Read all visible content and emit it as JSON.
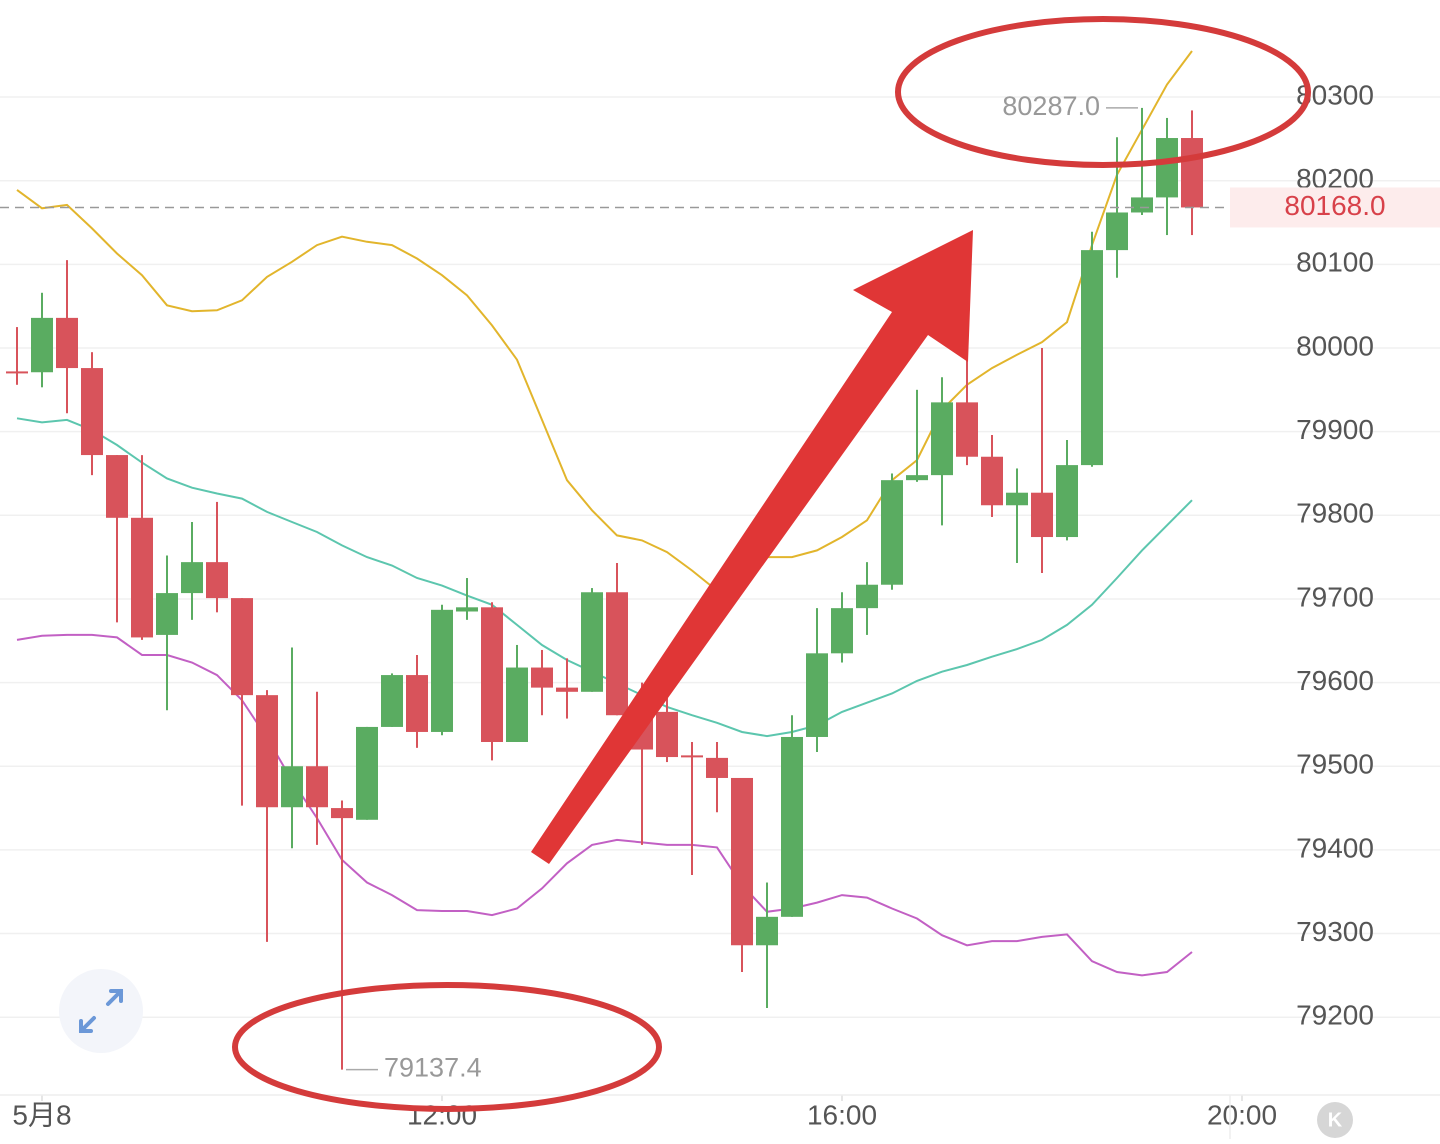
{
  "chart_data": {
    "type": "candlestick",
    "x": [
      7.75,
      8,
      8.25,
      8.5,
      8.75,
      9,
      9.25,
      9.5,
      9.75,
      10,
      10.25,
      10.5,
      10.75,
      11,
      11.25,
      11.5,
      11.75,
      12,
      12.25,
      12.5,
      12.75,
      13,
      13.25,
      13.5,
      13.75,
      14,
      14.25,
      14.5,
      14.75,
      15,
      15.25,
      15.5,
      15.75,
      16,
      16.25,
      16.5,
      16.75,
      17,
      17.25,
      17.5,
      17.75,
      18,
      18.25,
      18.5,
      18.75,
      19,
      19.25,
      19.5
    ],
    "open": [
      79972,
      79971,
      80036,
      79976,
      79872,
      79797,
      79657,
      79707,
      79744,
      79701,
      79585,
      79451,
      79500,
      79450,
      79436,
      79547,
      79609,
      79541,
      79685,
      79690,
      79529,
      79618,
      79594,
      79589,
      79708,
      79561,
      79565,
      79513,
      79510,
      79486,
      79286,
      79320,
      79535,
      79635,
      79689,
      79717,
      79842,
      79848,
      79935,
      79870,
      79812,
      79827,
      79774,
      79860,
      80117,
      80162,
      80180,
      80251
    ],
    "high": [
      80025,
      80066,
      80105,
      79995,
      79872,
      79872,
      79752,
      79792,
      79816,
      79701,
      79591,
      79642,
      79589,
      79459,
      79547,
      79611,
      79633,
      79693,
      79725,
      79696,
      79645,
      79639,
      79629,
      79713,
      79743,
      79600,
      79591,
      79529,
      79529,
      79486,
      79361,
      79561,
      79689,
      79708,
      79744,
      79850,
      79950,
      79965,
      80015,
      79896,
      79856,
      80000,
      79890,
      80139,
      80252,
      80287.0,
      80275,
      80284
    ],
    "low": [
      79956,
      79953,
      79922,
      79848,
      79672,
      79651,
      79567,
      79675,
      79684,
      79453,
      79290,
      79402,
      79406,
      79137.4,
      79436,
      79547,
      79522,
      79537,
      79675,
      79507,
      79529,
      79561,
      79557,
      79589,
      79561,
      79406,
      79505,
      79370,
      79445,
      79254,
      79211,
      79320,
      79517,
      79624,
      79657,
      79711,
      79840,
      79788,
      79860,
      79798,
      79743,
      79731,
      79770,
      79858,
      80084,
      80159,
      80135,
      80135
    ],
    "close": [
      79970,
      80036,
      79976,
      79872,
      79797,
      79654,
      79707,
      79744,
      79701,
      79585,
      79451,
      79500,
      79451,
      79438,
      79547,
      79609,
      79541,
      79687,
      79690,
      79529,
      79618,
      79594,
      79589,
      79708,
      79561,
      79520,
      79511,
      79511,
      79486,
      79286,
      79320,
      79535,
      79635,
      79689,
      79717,
      79842,
      79848,
      79935,
      79870,
      79812,
      79827,
      79774,
      79860,
      80117,
      80162,
      80180,
      80251,
      80168.0
    ],
    "up_color": "#5aac61",
    "down_color": "#d8535b",
    "lines": [
      {
        "color": "#e2b52c",
        "values": [
          80189,
          80167,
          80171,
          80143,
          80113,
          80087,
          80051,
          80044,
          80045,
          80057,
          80085,
          80103,
          80123,
          80133,
          80127,
          80123,
          80107,
          80087,
          80063,
          80027,
          79986,
          79914,
          79842,
          79806,
          79776,
          79770,
          79756,
          79734,
          79710,
          79722,
          79750,
          79750,
          79758,
          79774,
          79794,
          79842,
          79866,
          79926,
          79956,
          79976,
          79992,
          80007,
          80031,
          80123,
          80207,
          80261,
          80315,
          80355
        ]
      },
      {
        "color": "#5cc6ae",
        "values": [
          79916,
          79911,
          79914,
          79902,
          79884,
          79863,
          79844,
          79833,
          79826,
          79820,
          79804,
          79792,
          79780,
          79764,
          79750,
          79740,
          79725,
          79716,
          79704,
          79693,
          79669,
          79645,
          79627,
          79613,
          79599,
          79585,
          79571,
          79561,
          79552,
          79541,
          79536,
          79541,
          79549,
          79565,
          79576,
          79587,
          79602,
          79613,
          79621,
          79631,
          79640,
          79651,
          79669,
          79693,
          79725,
          79758,
          79788,
          79818
        ]
      },
      {
        "color": "#c260c4",
        "values": [
          79651,
          79656,
          79657,
          79657,
          79654,
          79633,
          79633,
          79624,
          79609,
          79579,
          79534,
          79483,
          79438,
          79388,
          79361,
          79346,
          79328,
          79327,
          79327,
          79322,
          79330,
          79354,
          79384,
          79406,
          79412,
          79409,
          79406,
          79406,
          79403,
          79358,
          79326,
          79330,
          79337,
          79346,
          79343,
          79330,
          79318,
          79298,
          79286,
          79291,
          79291,
          79296,
          79299,
          79267,
          79254,
          79250,
          79254,
          79278
        ]
      }
    ],
    "xlim": [
      7.58,
      20.03
    ],
    "xticks": [
      {
        "value": 8,
        "label": "5月8"
      },
      {
        "value": 12,
        "label": "12:00"
      },
      {
        "value": 16,
        "label": "16:00"
      },
      {
        "value": 20,
        "label": "20:00"
      }
    ],
    "ylim": [
      79107,
      80416
    ],
    "yticks": [
      79200,
      79300,
      79400,
      79500,
      79600,
      79700,
      79800,
      79900,
      80000,
      80100,
      80200,
      80300
    ],
    "grid": true,
    "current_price": {
      "value": 80168.0,
      "label": "80168.0"
    },
    "high_label": {
      "value": 80287.0,
      "label": "80287.0"
    },
    "low_label": {
      "value": 79137.4,
      "label": "79137.4"
    },
    "button_label": "K"
  }
}
